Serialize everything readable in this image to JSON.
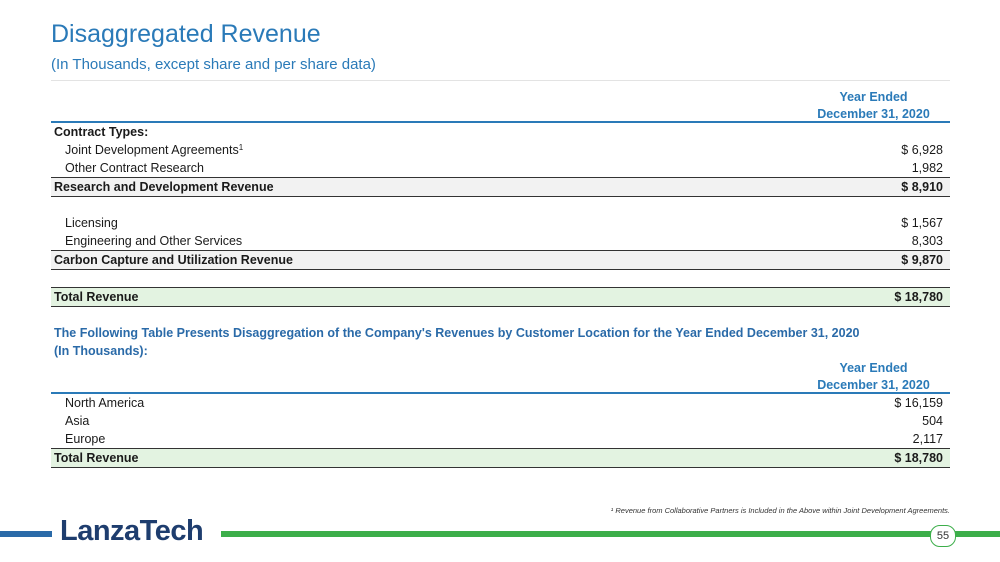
{
  "title": "Disaggregated Revenue",
  "subtitle": "(In Thousands, except share and per share data)",
  "table1": {
    "header_line1": "Year Ended",
    "header_line2": "December 31, 2020",
    "section_label": "Contract Types:",
    "rows": [
      {
        "label": "Joint Development Agreements",
        "sup": "1",
        "value": "$ 6,928"
      },
      {
        "label": "Other Contract Research",
        "value": "1,982"
      },
      {
        "label": "Research and Development Revenue",
        "value": "$ 8,910"
      },
      {
        "label": "Licensing",
        "value": "$ 1,567"
      },
      {
        "label": "Engineering and Other Services",
        "value": "8,303"
      },
      {
        "label": "Carbon Capture and Utilization Revenue",
        "value": "$ 9,870"
      },
      {
        "label": "Total Revenue",
        "value": "$ 18,780"
      }
    ]
  },
  "caption_line1": "The Following Table Presents Disaggregation of the Company's Revenues by Customer Location for the Year Ended December 31, 2020",
  "caption_line2": "(In Thousands):",
  "table2": {
    "header_line1": "Year Ended",
    "header_line2": "December 31, 2020",
    "rows": [
      {
        "label": "North America",
        "value": "$ 16,159"
      },
      {
        "label": "Asia",
        "value": "504"
      },
      {
        "label": "Europe",
        "value": "2,117"
      },
      {
        "label": "Total Revenue",
        "value": "$ 18,780"
      }
    ]
  },
  "footnote": "¹ Revenue from Collaborative Partners is Included in the Above within Joint Development Agreements.",
  "logo_text": "LanzaTech",
  "page_number": "55"
}
